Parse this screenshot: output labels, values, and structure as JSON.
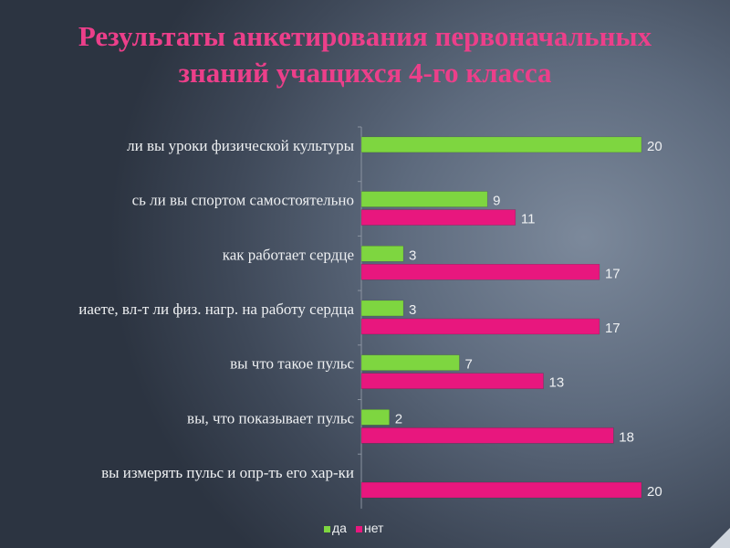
{
  "chart_data": {
    "type": "bar",
    "orientation": "horizontal",
    "title": "Результаты анкетирования первоначальных знаний учащихся 4-го класса",
    "categories": [
      "ли вы уроки физической культуры",
      "сь ли вы спортом самостоятельно",
      "как работает сердце",
      "иаете, вл-т ли физ. нагр. на работу сердца",
      "вы что такое пульс",
      "вы, что показывает пульс",
      "вы измерять пульс и опр-ть его хар-ки"
    ],
    "series": [
      {
        "name": "да",
        "color": "#7ed640",
        "values": [
          20,
          9,
          3,
          3,
          7,
          2,
          0
        ]
      },
      {
        "name": "нет",
        "color": "#e8177e",
        "values": [
          0,
          11,
          17,
          17,
          13,
          18,
          20
        ]
      }
    ],
    "xlim": [
      0,
      20
    ],
    "grid": false,
    "legend": "bottom"
  }
}
